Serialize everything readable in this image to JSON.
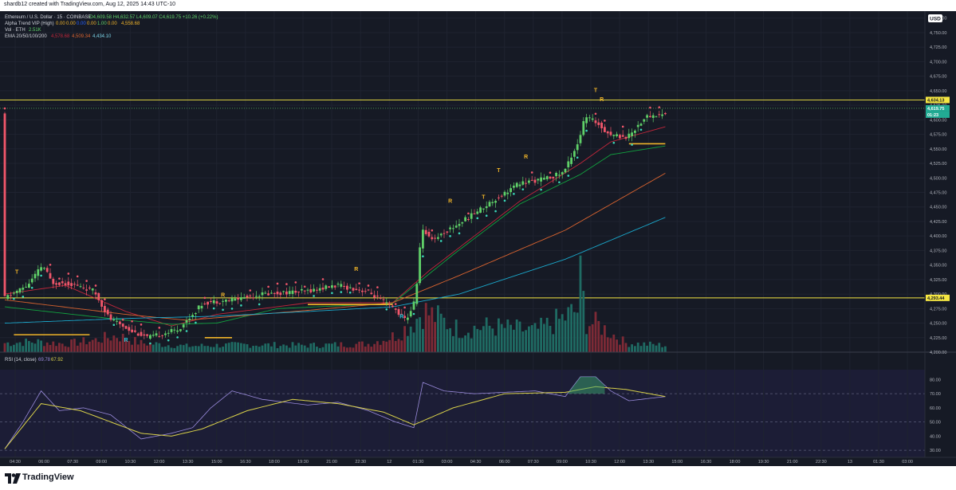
{
  "header": {
    "caption": "shardb12 created with TradingView.com, Aug 12, 2025 14:43 UTC-10"
  },
  "legend": {
    "symbol": "Ethereum / U.S. Dollar · 15 · COINBASE",
    "ohlc": "O4,609.58  H4,632.57  L4,609.07  C4,619.75  +10.26 (+0.22%)",
    "alpha_label": "Alpha Trend VIP (High)",
    "alpha_values": [
      "0.00",
      "0.00",
      "0.00",
      "0.00",
      "1.00",
      "0.00",
      "4,558.68"
    ],
    "vol_label": "Vol · ETH",
    "vol_value": "2.51K",
    "ema_label": "EMA 20/50/100/200",
    "ema_values": [
      "4,578.68",
      "4,509.34",
      "4,434.10"
    ],
    "rsi_label": "RSI (14, close)",
    "rsi_values": [
      "69.78",
      "67.92"
    ]
  },
  "currency_badge": "USD",
  "price_axis": {
    "ticks": [
      "4,775.00",
      "4,750.00",
      "4,725.00",
      "4,700.00",
      "4,675.00",
      "4,650.00",
      "4,625.00",
      "4,600.00",
      "4,575.00",
      "4,550.00",
      "4,525.00",
      "4,500.00",
      "4,475.00",
      "4,450.00",
      "4,425.00",
      "4,400.00",
      "4,375.00",
      "4,350.00",
      "4,325.00",
      "4,300.00",
      "4,275.00",
      "4,250.00",
      "4,225.00",
      "4,200.00"
    ],
    "tags": {
      "resistance": "4,634.13",
      "last_price": "4,619.75",
      "countdown": "01:23",
      "support": "4,293.44"
    }
  },
  "rsi_axis": {
    "ticks": [
      "80.00",
      "70.00",
      "60.00",
      "50.00",
      "40.00",
      "30.00"
    ]
  },
  "time_axis": {
    "ticks": [
      "04:30",
      "06:00",
      "07:30",
      "09:00",
      "10:30",
      "12:00",
      "13:30",
      "15:00",
      "16:30",
      "18:00",
      "19:30",
      "21:00",
      "22:30",
      "12",
      "01:30",
      "03:00",
      "04:30",
      "06:00",
      "07:30",
      "09:00",
      "10:30",
      "12:00",
      "13:30",
      "15:00",
      "16:30",
      "18:00",
      "19:30",
      "21:00",
      "22:30",
      "13",
      "01:30",
      "03:00"
    ]
  },
  "signal_labels": [
    "T",
    "R",
    "R",
    "R",
    "R",
    "R",
    "R",
    "T",
    "T",
    "T",
    "R"
  ],
  "brand": {
    "name": "TradingView"
  },
  "colors": {
    "background": "#161a25",
    "up": "#5fd068",
    "down": "#f0566a",
    "level": "#f5e642",
    "ema20": "#c2273b",
    "ema50": "#12a13f",
    "ema100": "#d9632f",
    "ema200": "#1aa6c9",
    "rsi": "#9a8bdc",
    "rsi_ma": "#d9d14a",
    "signal": "#f0b429",
    "signal_r": "#2ec4d8"
  },
  "chart_data": [
    {
      "type": "candlestick",
      "title": "Ethereum / U.S. Dollar · 15 · COINBASE",
      "ylim": [
        4200,
        4787
      ],
      "xlabels": [
        "04:30",
        "06:00",
        "07:30",
        "09:00",
        "10:30",
        "12:00",
        "13:30",
        "15:00",
        "16:30",
        "18:00",
        "19:30",
        "21:00",
        "22:30",
        "12",
        "01:30",
        "03:00",
        "04:30",
        "06:00",
        "07:30",
        "09:00",
        "10:30",
        "12:00",
        "13:30",
        "15:00",
        "16:30",
        "18:00",
        "19:30",
        "21:00",
        "22:30",
        "13",
        "01:30",
        "03:00"
      ],
      "levels": [
        {
          "name": "resistance",
          "value": 4634.13
        },
        {
          "name": "support",
          "value": 4293.44
        }
      ],
      "path_knots": [
        [
          0,
          4292
        ],
        [
          8,
          4315
        ],
        [
          13,
          4350
        ],
        [
          16,
          4320
        ],
        [
          22,
          4318
        ],
        [
          30,
          4305
        ],
        [
          35,
          4258
        ],
        [
          43,
          4235
        ],
        [
          48,
          4225
        ],
        [
          58,
          4240
        ],
        [
          66,
          4285
        ],
        [
          75,
          4290
        ],
        [
          85,
          4300
        ],
        [
          100,
          4305
        ],
        [
          110,
          4315
        ],
        [
          120,
          4305
        ],
        [
          129,
          4275
        ],
        [
          133,
          4255
        ],
        [
          136,
          4290
        ],
        [
          138,
          4410
        ],
        [
          142,
          4395
        ],
        [
          150,
          4420
        ],
        [
          160,
          4455
        ],
        [
          170,
          4490
        ],
        [
          180,
          4500
        ],
        [
          185,
          4510
        ],
        [
          190,
          4565
        ],
        [
          192,
          4605
        ],
        [
          196,
          4595
        ],
        [
          200,
          4575
        ],
        [
          206,
          4570
        ],
        [
          212,
          4605
        ],
        [
          218,
          4610
        ]
      ],
      "volume_knots": [
        [
          0,
          12
        ],
        [
          10,
          14
        ],
        [
          20,
          11
        ],
        [
          30,
          16
        ],
        [
          37,
          22
        ],
        [
          45,
          12
        ],
        [
          60,
          8
        ],
        [
          80,
          10
        ],
        [
          100,
          9
        ],
        [
          120,
          11
        ],
        [
          129,
          22
        ],
        [
          135,
          40
        ],
        [
          138,
          55
        ],
        [
          150,
          30
        ],
        [
          160,
          34
        ],
        [
          175,
          28
        ],
        [
          183,
          42
        ],
        [
          189,
          55
        ],
        [
          190,
          95
        ],
        [
          192,
          40
        ],
        [
          196,
          36
        ],
        [
          205,
          12
        ],
        [
          218,
          9
        ]
      ],
      "ema_knots": {
        "ema20": [
          [
            0,
            4300
          ],
          [
            20,
            4315
          ],
          [
            40,
            4270
          ],
          [
            55,
            4245
          ],
          [
            70,
            4265
          ],
          [
            100,
            4285
          ],
          [
            128,
            4285
          ],
          [
            140,
            4340
          ],
          [
            170,
            4460
          ],
          [
            190,
            4525
          ],
          [
            200,
            4562
          ],
          [
            218,
            4588
          ]
        ],
        "ema50": [
          [
            0,
            4278
          ],
          [
            40,
            4255
          ],
          [
            55,
            4248
          ],
          [
            70,
            4250
          ],
          [
            90,
            4275
          ],
          [
            128,
            4284
          ],
          [
            148,
            4368
          ],
          [
            170,
            4455
          ],
          [
            190,
            4506
          ],
          [
            200,
            4540
          ],
          [
            218,
            4555
          ]
        ],
        "ema100": [
          [
            0,
            4290
          ],
          [
            40,
            4265
          ],
          [
            60,
            4255
          ],
          [
            100,
            4272
          ],
          [
            128,
            4285
          ],
          [
            150,
            4332
          ],
          [
            185,
            4410
          ],
          [
            218,
            4508
          ]
        ],
        "ema200": [
          [
            0,
            4250
          ],
          [
            40,
            4258
          ],
          [
            70,
            4262
          ],
          [
            100,
            4270
          ],
          [
            128,
            4278
          ],
          [
            150,
            4300
          ],
          [
            185,
            4360
          ],
          [
            218,
            4432
          ]
        ]
      },
      "alpha_trend_segments": [
        {
          "from": 3,
          "to": 28,
          "value": 4230
        },
        {
          "from": 66,
          "to": 75,
          "value": 4225
        },
        {
          "from": 100,
          "to": 128,
          "value": 4282
        },
        {
          "from": 206,
          "to": 218,
          "value": 4558.68
        }
      ],
      "signal_marks": [
        {
          "i": 4,
          "value": 4335,
          "text": "T",
          "color": "signal"
        },
        {
          "i": 40,
          "value": 4218,
          "text": "R",
          "color": "signal_r"
        },
        {
          "i": 72,
          "value": 4295,
          "text": "R",
          "color": "signal"
        },
        {
          "i": 116,
          "value": 4340,
          "text": "R",
          "color": "signal"
        },
        {
          "i": 131,
          "value": 4258,
          "text": "R",
          "color": "signal_r"
        },
        {
          "i": 147,
          "value": 4457,
          "text": "R",
          "color": "signal"
        },
        {
          "i": 172,
          "value": 4533,
          "text": "R",
          "color": "signal"
        },
        {
          "i": 197,
          "value": 4632,
          "text": "R",
          "color": "signal"
        },
        {
          "i": 163,
          "value": 4510,
          "text": "T",
          "color": "signal"
        },
        {
          "i": 158,
          "value": 4464,
          "text": "T",
          "color": "signal"
        },
        {
          "i": 195,
          "value": 4648,
          "text": "T",
          "color": "signal"
        }
      ]
    },
    {
      "type": "line",
      "title": "RSI (14, close)",
      "ylim": [
        25,
        87
      ],
      "bands": [
        30,
        50,
        70
      ],
      "rsi_knots": [
        [
          0,
          31
        ],
        [
          6,
          50
        ],
        [
          12,
          72
        ],
        [
          18,
          58
        ],
        [
          26,
          60
        ],
        [
          35,
          55
        ],
        [
          45,
          38
        ],
        [
          55,
          42
        ],
        [
          62,
          46
        ],
        [
          68,
          60
        ],
        [
          75,
          72
        ],
        [
          85,
          66
        ],
        [
          100,
          62
        ],
        [
          110,
          64
        ],
        [
          120,
          58
        ],
        [
          129,
          50
        ],
        [
          135,
          46
        ],
        [
          138,
          78
        ],
        [
          145,
          72
        ],
        [
          155,
          70
        ],
        [
          165,
          71
        ],
        [
          175,
          72
        ],
        [
          185,
          68
        ],
        [
          190,
          82
        ],
        [
          195,
          82
        ],
        [
          200,
          72
        ],
        [
          206,
          65
        ],
        [
          218,
          68
        ]
      ],
      "rsi_ma_knots": [
        [
          0,
          31
        ],
        [
          12,
          63
        ],
        [
          25,
          58
        ],
        [
          45,
          42
        ],
        [
          55,
          40
        ],
        [
          65,
          45
        ],
        [
          80,
          58
        ],
        [
          95,
          66
        ],
        [
          110,
          63
        ],
        [
          125,
          57
        ],
        [
          135,
          48
        ],
        [
          148,
          60
        ],
        [
          165,
          70
        ],
        [
          185,
          71
        ],
        [
          195,
          75
        ],
        [
          205,
          73
        ],
        [
          218,
          68
        ]
      ]
    }
  ]
}
